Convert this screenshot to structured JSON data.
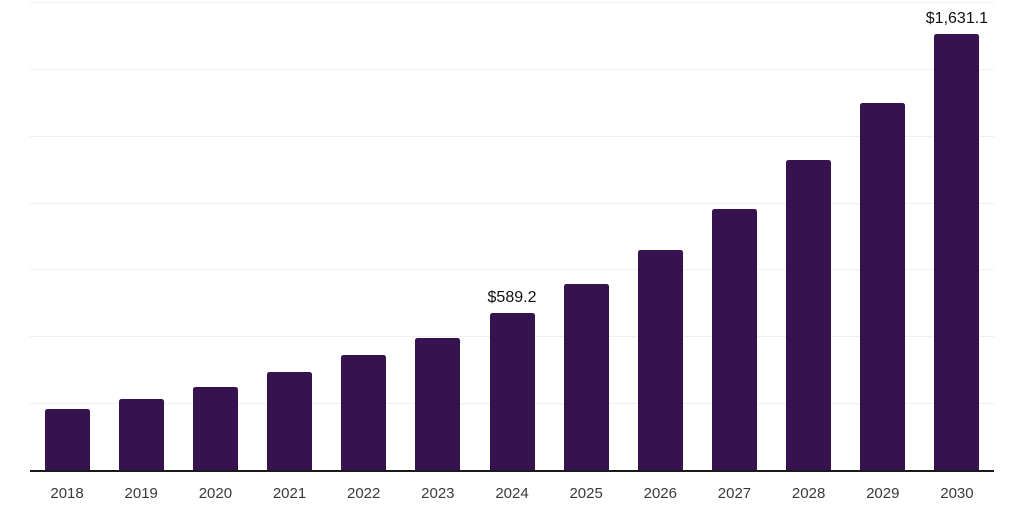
{
  "chart_data": {
    "type": "bar",
    "title": "",
    "xlabel": "",
    "ylabel": "",
    "legend": "none",
    "grid": "horizontal",
    "categories": [
      "2018",
      "2019",
      "2020",
      "2021",
      "2022",
      "2023",
      "2024",
      "2025",
      "2026",
      "2027",
      "2028",
      "2029",
      "2030"
    ],
    "values": [
      231,
      268,
      312,
      367,
      432,
      496,
      589.2,
      698,
      825,
      979,
      1161,
      1375,
      1631.1
    ],
    "value_unit": "USD",
    "ylim": [
      0,
      1750
    ],
    "gridline_step": 250,
    "data_labels": [
      {
        "category": "2024",
        "text": "$589.2"
      },
      {
        "category": "2030",
        "text": "$1,631.1"
      }
    ],
    "colors": {
      "bar": "#36124F",
      "grid": "#EFEFEF",
      "axis": "#1A1A1A",
      "tick_text": "#3A3A3A",
      "label_text": "#111111",
      "background": "#FFFFFF"
    }
  }
}
